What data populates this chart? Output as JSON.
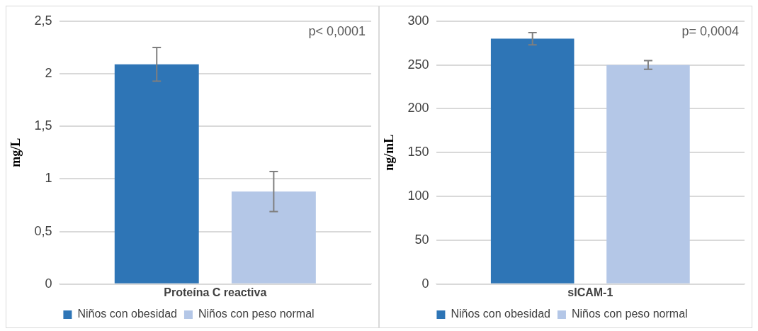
{
  "chart_data": [
    {
      "type": "bar",
      "categories": [
        "Proteína C reactiva"
      ],
      "ylabel": "mg/L",
      "ylim": [
        0,
        2.5
      ],
      "yticks": [
        {
          "value": 0,
          "label": "0"
        },
        {
          "value": 0.5,
          "label": "0,5"
        },
        {
          "value": 1,
          "label": "1"
        },
        {
          "value": 1.5,
          "label": "1,5"
        },
        {
          "value": 2,
          "label": "2"
        },
        {
          "value": 2.5,
          "label": "2,5"
        }
      ],
      "grid": "y",
      "legend": "bottom",
      "annotations": [
        "p< 0,0001"
      ],
      "series": [
        {
          "name": "Niños con obesidad",
          "color": "#2e75b6",
          "values": [
            2.09
          ],
          "errors": [
            0.16
          ]
        },
        {
          "name": "Niños con peso normal",
          "color": "#b4c7e7",
          "values": [
            0.88
          ],
          "errors": [
            0.19
          ]
        }
      ]
    },
    {
      "type": "bar",
      "categories": [
        "sICAM-1"
      ],
      "ylabel": "ng/mL",
      "ylim": [
        0,
        300
      ],
      "yticks": [
        0,
        50,
        100,
        150,
        200,
        250,
        300
      ],
      "grid": "y",
      "legend": "bottom",
      "annotations": [
        "p= 0,0004"
      ],
      "series": [
        {
          "name": "Niños con obesidad",
          "color": "#2e75b6",
          "values": [
            280
          ],
          "errors": [
            7
          ]
        },
        {
          "name": "Niños con peso normal",
          "color": "#b4c7e7",
          "values": [
            250
          ],
          "errors": [
            5
          ]
        }
      ]
    }
  ]
}
